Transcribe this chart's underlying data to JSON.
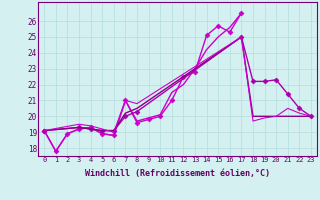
{
  "title": "",
  "xlabel": "Windchill (Refroidissement éolien,°C)",
  "ylabel": "",
  "background_color": "#d4f0f0",
  "grid_color": "#b8e0e0",
  "line_color_bright": "#cc00cc",
  "line_color_dark": "#880088",
  "xlim": [
    -0.5,
    23.5
  ],
  "ylim": [
    17.5,
    27.2
  ],
  "xticks": [
    0,
    1,
    2,
    3,
    4,
    5,
    6,
    7,
    8,
    9,
    10,
    11,
    12,
    13,
    14,
    15,
    16,
    17,
    18,
    19,
    20,
    21,
    22,
    23
  ],
  "yticks": [
    18,
    19,
    20,
    21,
    22,
    23,
    24,
    25,
    26
  ],
  "series": [
    {
      "x": [
        0,
        1,
        2,
        3,
        4,
        5,
        6,
        7,
        8,
        9,
        10,
        11,
        12,
        13,
        14,
        15,
        16,
        17
      ],
      "y": [
        19.1,
        17.8,
        18.9,
        19.2,
        19.3,
        18.9,
        18.8,
        21.0,
        19.6,
        19.8,
        20.0,
        21.0,
        22.5,
        22.8,
        25.1,
        25.7,
        25.3,
        26.5
      ],
      "marker": "D",
      "lw": 1.0,
      "ms": 2.5,
      "color": "#cc00cc"
    },
    {
      "x": [
        0,
        1,
        2,
        3,
        4,
        5,
        6,
        7,
        8,
        9,
        10,
        11,
        12,
        13,
        14,
        15,
        16,
        17
      ],
      "y": [
        19.1,
        17.8,
        18.9,
        19.2,
        19.3,
        18.9,
        18.8,
        21.0,
        19.7,
        19.9,
        20.1,
        21.5,
        22.0,
        23.0,
        24.2,
        25.0,
        25.6,
        26.5
      ],
      "marker": "D",
      "lw": 1.0,
      "ms": 0,
      "color": "#cc00cc"
    },
    {
      "x": [
        0,
        3,
        4,
        5,
        6,
        7,
        8,
        17,
        18,
        19,
        20,
        21,
        22,
        23
      ],
      "y": [
        19.1,
        19.3,
        19.2,
        19.1,
        19.1,
        20.0,
        20.3,
        25.0,
        22.2,
        22.2,
        22.3,
        21.4,
        20.5,
        20.0
      ],
      "marker": "D",
      "lw": 1.0,
      "ms": 2.5,
      "color": "#aa00aa"
    },
    {
      "x": [
        0,
        3,
        4,
        5,
        6,
        7,
        8,
        17,
        18,
        19,
        20,
        21,
        22,
        23
      ],
      "y": [
        19.1,
        19.3,
        19.2,
        19.1,
        19.1,
        20.2,
        20.5,
        25.0,
        20.0,
        20.0,
        20.0,
        20.0,
        20.0,
        20.0
      ],
      "marker": null,
      "lw": 1.0,
      "ms": 0,
      "color": "#880088"
    },
    {
      "x": [
        0,
        3,
        4,
        5,
        6,
        7,
        8,
        17,
        18,
        19,
        20,
        21,
        22,
        23
      ],
      "y": [
        19.1,
        19.5,
        19.4,
        19.2,
        19.0,
        21.0,
        20.8,
        25.0,
        19.7,
        19.9,
        20.0,
        20.5,
        20.2,
        20.0
      ],
      "marker": null,
      "lw": 0.8,
      "ms": 0,
      "color": "#cc00cc"
    }
  ]
}
